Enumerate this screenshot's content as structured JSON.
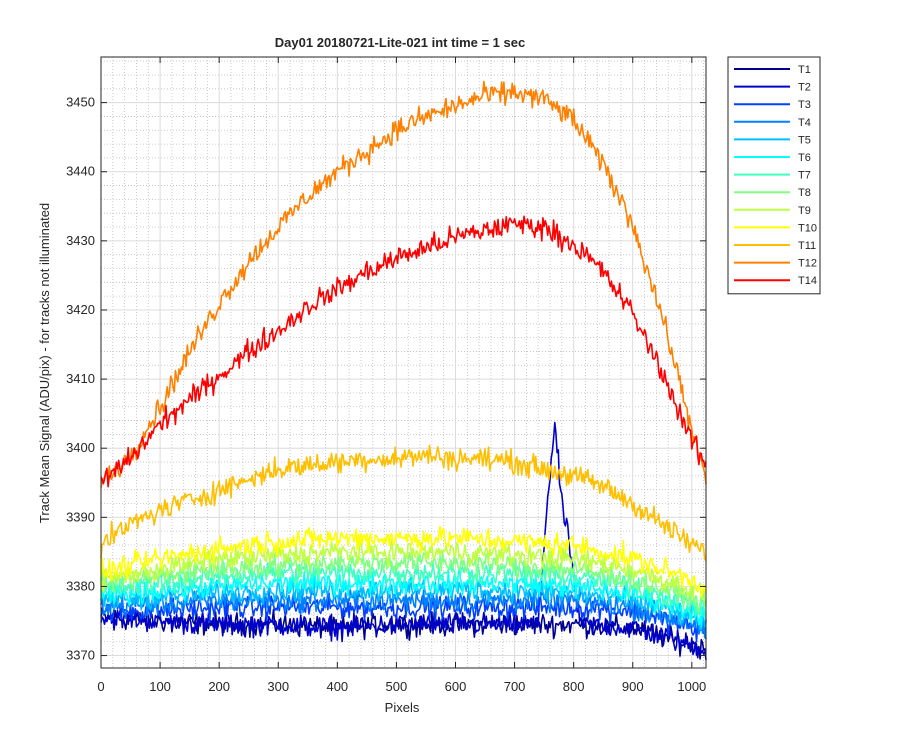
{
  "chart_data": {
    "type": "line",
    "title": "Day01 20180721-Lite-021 int time = 1 sec",
    "xlabel": "Pixels",
    "ylabel": "Track Mean Signal (ADU/pix) - for tracks not illuminated",
    "xlim": [
      0,
      1024
    ],
    "ylim": [
      3368.2,
      3456.6
    ],
    "xticks": [
      0,
      100,
      200,
      300,
      400,
      500,
      600,
      700,
      800,
      900,
      1000
    ],
    "yticks": [
      3370,
      3380,
      3390,
      3400,
      3410,
      3420,
      3430,
      3440,
      3450
    ],
    "grid": "major and minor",
    "legend_position": "outside-top-right",
    "series": [
      {
        "name": "T1",
        "color": "#00008f",
        "x": [
          0,
          100,
          200,
          300,
          400,
          500,
          600,
          700,
          800,
          900,
          1000,
          1024
        ],
        "y": [
          3375.5,
          3375.0,
          3374.5,
          3374.5,
          3374.0,
          3374.5,
          3374.5,
          3374.5,
          3374.5,
          3374.0,
          3371.5,
          3371.0
        ]
      },
      {
        "name": "T2",
        "color": "#0000cd",
        "x": [
          0,
          100,
          200,
          300,
          400,
          500,
          600,
          700,
          740,
          755,
          768,
          780,
          795,
          810,
          900,
          1000,
          1024
        ],
        "y": [
          3375.5,
          3375.0,
          3374.5,
          3374.5,
          3374.0,
          3374.5,
          3374.5,
          3374.5,
          3374.5,
          3392.0,
          3403.5,
          3392.0,
          3385.0,
          3374.5,
          3374.0,
          3371.5,
          3371.0
        ]
      },
      {
        "name": "T3",
        "color": "#0040ff",
        "x": [
          0,
          100,
          200,
          300,
          400,
          500,
          600,
          700,
          800,
          900,
          1000,
          1024
        ],
        "y": [
          3376.5,
          3376.5,
          3377.0,
          3377.0,
          3377.0,
          3377.0,
          3377.0,
          3377.0,
          3377.0,
          3376.5,
          3374.0,
          3373.0
        ]
      },
      {
        "name": "T4",
        "color": "#0080ff",
        "x": [
          0,
          100,
          200,
          300,
          400,
          500,
          600,
          700,
          800,
          900,
          1000,
          1024
        ],
        "y": [
          3377.0,
          3377.5,
          3378.0,
          3378.0,
          3378.0,
          3378.0,
          3378.0,
          3378.0,
          3378.0,
          3377.0,
          3374.5,
          3373.5
        ]
      },
      {
        "name": "T5",
        "color": "#00bfff",
        "x": [
          0,
          100,
          200,
          300,
          400,
          500,
          600,
          700,
          800,
          900,
          1000,
          1024
        ],
        "y": [
          3378.0,
          3378.5,
          3379.0,
          3379.5,
          3379.5,
          3379.5,
          3379.5,
          3379.5,
          3379.0,
          3378.0,
          3375.5,
          3374.5
        ]
      },
      {
        "name": "T6",
        "color": "#00ffff",
        "x": [
          0,
          100,
          200,
          300,
          400,
          500,
          600,
          700,
          800,
          900,
          1000,
          1024
        ],
        "y": [
          3378.5,
          3379.5,
          3380.0,
          3380.5,
          3380.5,
          3380.5,
          3380.5,
          3380.5,
          3380.0,
          3379.0,
          3376.5,
          3375.5
        ]
      },
      {
        "name": "T7",
        "color": "#40ffbf",
        "x": [
          0,
          100,
          200,
          300,
          400,
          500,
          600,
          700,
          800,
          900,
          1000,
          1024
        ],
        "y": [
          3379.5,
          3380.5,
          3381.5,
          3382.0,
          3382.0,
          3382.0,
          3382.0,
          3382.0,
          3381.5,
          3380.0,
          3377.5,
          3376.5
        ]
      },
      {
        "name": "T8",
        "color": "#80ff80",
        "x": [
          0,
          100,
          200,
          300,
          400,
          500,
          600,
          700,
          800,
          900,
          1000,
          1024
        ],
        "y": [
          3380.5,
          3381.5,
          3382.5,
          3383.0,
          3383.5,
          3383.5,
          3383.5,
          3383.0,
          3382.5,
          3381.0,
          3378.5,
          3377.5
        ]
      },
      {
        "name": "T9",
        "color": "#bfff40",
        "x": [
          0,
          100,
          200,
          300,
          400,
          500,
          600,
          700,
          800,
          900,
          1000,
          1024
        ],
        "y": [
          3381.0,
          3382.5,
          3384.0,
          3384.5,
          3385.0,
          3385.0,
          3385.0,
          3384.5,
          3384.0,
          3382.5,
          3379.5,
          3378.5
        ]
      },
      {
        "name": "T10",
        "color": "#ffff00",
        "x": [
          0,
          100,
          200,
          300,
          400,
          500,
          600,
          700,
          800,
          900,
          1000,
          1024
        ],
        "y": [
          3382.0,
          3384.0,
          3385.5,
          3386.5,
          3387.0,
          3387.0,
          3387.0,
          3386.5,
          3386.0,
          3384.0,
          3381.0,
          3379.5
        ]
      },
      {
        "name": "T11",
        "color": "#ffbf00",
        "x": [
          0,
          50,
          100,
          150,
          200,
          250,
          300,
          350,
          400,
          450,
          500,
          550,
          600,
          650,
          700,
          750,
          800,
          850,
          900,
          950,
          1000,
          1024
        ],
        "y": [
          3386.0,
          3389.0,
          3391.0,
          3392.5,
          3394.0,
          3395.5,
          3397.0,
          3397.5,
          3398.0,
          3398.5,
          3398.5,
          3399.0,
          3398.5,
          3398.5,
          3398.0,
          3397.0,
          3396.0,
          3394.5,
          3392.0,
          3389.0,
          3386.0,
          3385.0
        ]
      },
      {
        "name": "T12",
        "color": "#ff8000",
        "x": [
          0,
          50,
          100,
          150,
          200,
          250,
          300,
          350,
          400,
          450,
          500,
          550,
          600,
          650,
          700,
          750,
          800,
          850,
          900,
          950,
          1000,
          1024
        ],
        "y": [
          3395.0,
          3399.0,
          3406.0,
          3414.0,
          3421.0,
          3427.0,
          3432.0,
          3436.5,
          3440.0,
          3443.0,
          3446.0,
          3448.0,
          3449.5,
          3451.0,
          3451.5,
          3450.5,
          3447.5,
          3441.0,
          3432.5,
          3419.0,
          3403.0,
          3395.0
        ]
      },
      {
        "name": "T14",
        "color": "#ff0000",
        "x": [
          0,
          50,
          100,
          150,
          200,
          250,
          300,
          350,
          400,
          450,
          500,
          550,
          600,
          650,
          700,
          750,
          800,
          850,
          900,
          950,
          1000,
          1024
        ],
        "y": [
          3395.0,
          3398.5,
          3403.5,
          3407.0,
          3410.5,
          3414.0,
          3417.0,
          3420.5,
          3423.0,
          3425.5,
          3427.5,
          3429.0,
          3430.5,
          3431.5,
          3432.5,
          3432.0,
          3429.5,
          3425.5,
          3419.5,
          3411.0,
          3401.0,
          3397.5
        ]
      }
    ]
  }
}
